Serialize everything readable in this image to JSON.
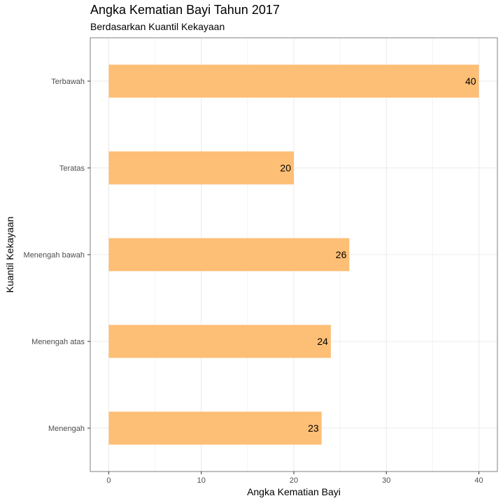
{
  "chart_data": {
    "type": "bar",
    "orientation": "horizontal",
    "title": "Angka Kematian Bayi Tahun 2017",
    "subtitle": "Berdasarkan Kuantil Kekayaan",
    "xlabel": "Angka Kematian Bayi",
    "ylabel": "Kuantil Kekayaan",
    "categories": [
      "Terbawah",
      "Teratas",
      "Menengah bawah",
      "Menengah atas",
      "Menengah"
    ],
    "values": [
      40,
      20,
      26,
      24,
      23
    ],
    "data_labels": [
      "40",
      "20",
      "26",
      "24",
      "23"
    ],
    "x_ticks": [
      "0",
      "10",
      "20",
      "30",
      "40"
    ],
    "xlim": [
      -2,
      42
    ],
    "grid": true,
    "bar_color": "#fdbe75",
    "panel_border_color": "#7f7f7f",
    "grid_color": "#ebebeb"
  }
}
